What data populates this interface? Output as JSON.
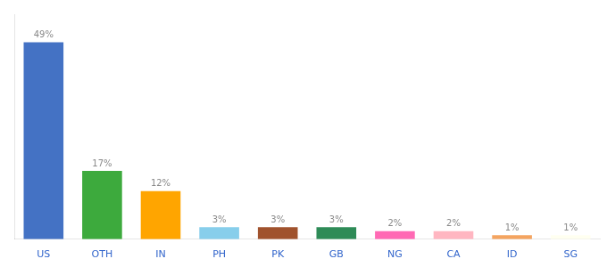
{
  "chart_data": {
    "type": "bar",
    "categories": [
      "US",
      "OTH",
      "IN",
      "PH",
      "PK",
      "GB",
      "NG",
      "CA",
      "ID",
      "SG"
    ],
    "values": [
      49,
      17,
      12,
      3,
      3,
      3,
      2,
      2,
      1,
      1
    ],
    "value_labels": [
      "49%",
      "17%",
      "12%",
      "3%",
      "3%",
      "3%",
      "2%",
      "2%",
      "1%",
      "1%"
    ],
    "colors": [
      "#4472C4",
      "#3DAA3D",
      "#FFA500",
      "#87CEEB",
      "#A0522D",
      "#2E8B57",
      "#FF69B4",
      "#FFB6C1",
      "#F4A460",
      "#FFFFF0"
    ],
    "ylim": [
      0,
      56
    ],
    "grid": false,
    "data_labels": true,
    "tick_labels": "x"
  }
}
